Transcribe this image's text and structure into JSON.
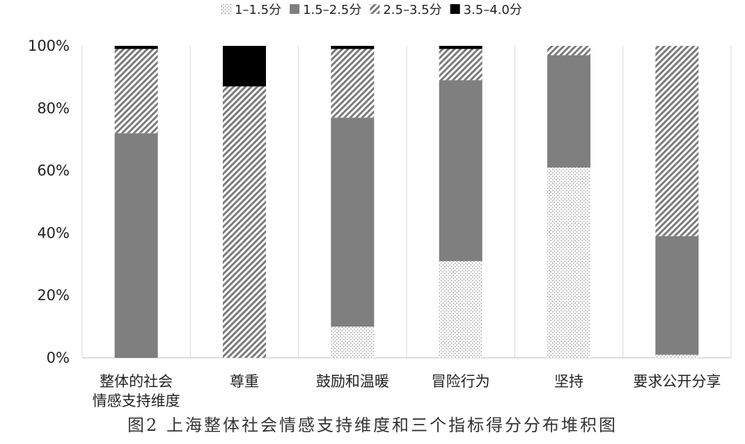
{
  "caption": "图2  上海整体社会情感支持维度和三个指标得分分布堆积图",
  "chart_data": {
    "type": "bar",
    "stacked": true,
    "percent": true,
    "categories": [
      [
        "整体的社会",
        "情感支持维度"
      ],
      [
        "尊重"
      ],
      [
        "鼓励和温暖"
      ],
      [
        "冒险行为"
      ],
      [
        "坚持"
      ],
      [
        "要求公开分享"
      ]
    ],
    "series": [
      {
        "name": "1–1.5分",
        "pattern": "dots",
        "color": "#9a9a9a",
        "values": [
          0,
          0,
          10,
          31,
          61,
          1
        ]
      },
      {
        "name": "1.5–2.5分",
        "pattern": "solid",
        "color": "#7f7f7f",
        "values": [
          72,
          0,
          67,
          58,
          36,
          38
        ]
      },
      {
        "name": "2.5–3.5分",
        "pattern": "hatch",
        "color": "#8c8c8c",
        "values": [
          27,
          87,
          22,
          10,
          3,
          61
        ]
      },
      {
        "name": "3.5–4.0分",
        "pattern": "solid-black",
        "color": "#000000",
        "values": [
          1,
          13,
          1,
          1,
          0,
          0
        ]
      }
    ],
    "y_ticks": [
      "0%",
      "20%",
      "40%",
      "60%",
      "80%",
      "100%"
    ],
    "ylim": [
      0,
      100
    ],
    "grid": "vertical-separators",
    "legend_position": "top"
  }
}
